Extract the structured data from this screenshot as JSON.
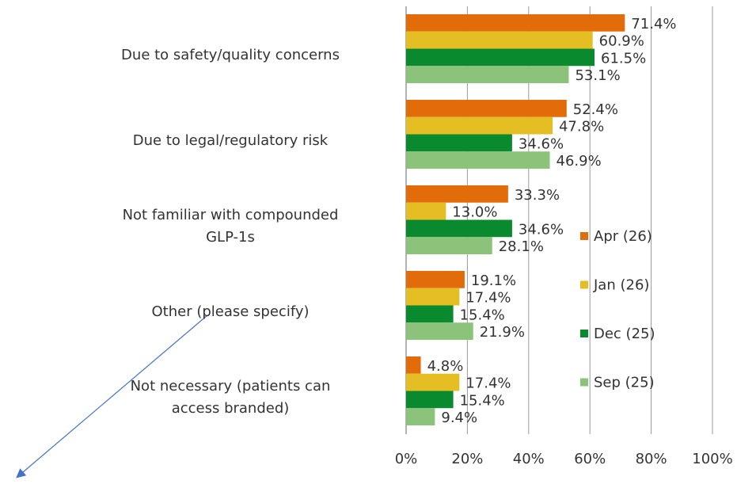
{
  "chart_data": {
    "type": "bar",
    "orientation": "horizontal",
    "categories": [
      "Due to safety/quality concerns",
      "Due to legal/regulatory risk",
      "Not familiar with compounded\nGLP-1s",
      "Other (please specify)",
      "Not necessary (patients can\naccess branded)"
    ],
    "series": [
      {
        "name": "Apr (26)",
        "color": "#e36c0a",
        "values": [
          71.4,
          52.4,
          33.3,
          19.1,
          4.8
        ],
        "value_labels": [
          "71.4%",
          "52.4%",
          "33.3%",
          "19.1%",
          "4.8%"
        ]
      },
      {
        "name": "Jan (26)",
        "color": "#e5be24",
        "values": [
          60.9,
          47.8,
          13.0,
          17.4,
          17.4
        ],
        "value_labels": [
          "60.9%",
          "47.8%",
          "13.0%",
          "17.4%",
          "17.4%"
        ]
      },
      {
        "name": "Dec (25)",
        "color": "#0a8a2e",
        "values": [
          61.5,
          34.6,
          34.6,
          15.4,
          15.4
        ],
        "value_labels": [
          "61.5%",
          "34.6%",
          "34.6%",
          "15.4%",
          "15.4%"
        ]
      },
      {
        "name": "Sep (25)",
        "color": "#8cc37a",
        "values": [
          53.1,
          46.9,
          28.1,
          21.9,
          9.4
        ],
        "value_labels": [
          "53.1%",
          "46.9%",
          "28.1%",
          "21.9%",
          "9.4%"
        ]
      }
    ],
    "xlim": [
      0,
      100
    ],
    "xticks": [
      {
        "value": 0,
        "label": "0%"
      },
      {
        "value": 20,
        "label": "20%"
      },
      {
        "value": 40,
        "label": "40%"
      },
      {
        "value": 60,
        "label": "60%"
      },
      {
        "value": 80,
        "label": "80%"
      },
      {
        "value": 100,
        "label": "100%"
      }
    ],
    "grid": true,
    "legend": "right"
  }
}
